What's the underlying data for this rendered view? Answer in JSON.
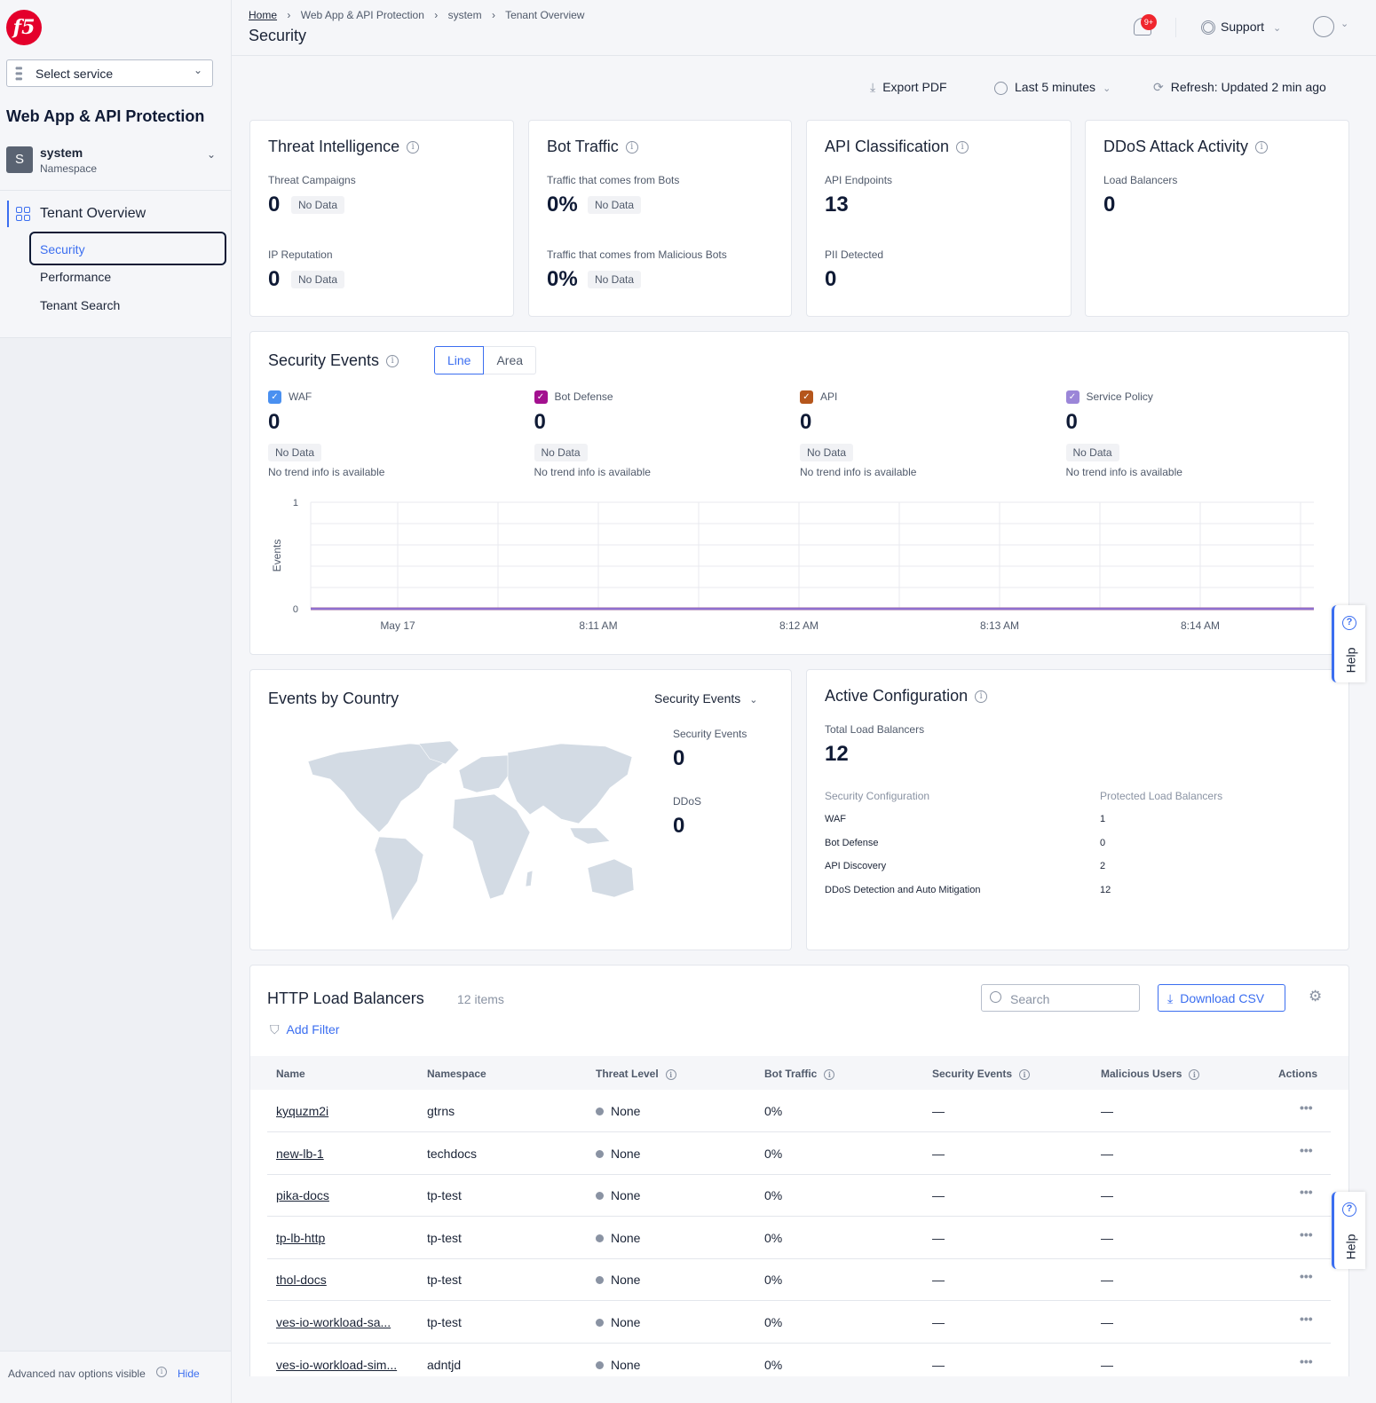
{
  "sidebar": {
    "select_service": "Select service",
    "app_title": "Web App & API Protection",
    "namespace": {
      "avatar": "S",
      "name": "system",
      "label": "Namespace"
    },
    "section": "Tenant Overview",
    "items": [
      {
        "label": "Security",
        "active": true
      },
      {
        "label": "Performance"
      },
      {
        "label": "Tenant Search"
      }
    ],
    "footer": {
      "text": "Advanced nav options visible",
      "hide": "Hide"
    }
  },
  "header": {
    "breadcrumb": [
      "Home",
      "Web App & API Protection",
      "system",
      "Tenant Overview"
    ],
    "title": "Security",
    "notifications_badge": "9+",
    "support": "Support"
  },
  "toolbar": {
    "export": "Export PDF",
    "time_range": "Last 5 minutes",
    "refresh": "Refresh: Updated 2 min ago"
  },
  "cards": {
    "threat": {
      "title": "Threat Intelligence",
      "m1_label": "Threat Campaigns",
      "m1_value": "0",
      "m1_badge": "No Data",
      "m2_label": "IP Reputation",
      "m2_value": "0",
      "m2_badge": "No Data"
    },
    "bot": {
      "title": "Bot Traffic",
      "m1_label": "Traffic that comes from Bots",
      "m1_value": "0%",
      "m1_badge": "No Data",
      "m2_label": "Traffic that comes from Malicious Bots",
      "m2_value": "0%",
      "m2_badge": "No Data"
    },
    "api": {
      "title": "API Classification",
      "m1_label": "API Endpoints",
      "m1_value": "13",
      "m2_label": "PII Detected",
      "m2_value": "0"
    },
    "ddos": {
      "title": "DDoS Attack Activity",
      "m1_label": "Load Balancers",
      "m1_value": "0"
    }
  },
  "security_events": {
    "title": "Security Events",
    "tabs": [
      "Line",
      "Area"
    ],
    "active_tab": "Line",
    "series": [
      {
        "name": "WAF",
        "value": "0",
        "badge": "No Data",
        "trend": "No trend info is available",
        "color": "#4a90f0"
      },
      {
        "name": "Bot Defense",
        "value": "0",
        "badge": "No Data",
        "trend": "No trend info is available",
        "color": "#a3108f"
      },
      {
        "name": "API",
        "value": "0",
        "badge": "No Data",
        "trend": "No trend info is available",
        "color": "#b5561c"
      },
      {
        "name": "Service Policy",
        "value": "0",
        "badge": "No Data",
        "trend": "No trend info is available",
        "color": "#9b86d8"
      }
    ]
  },
  "chart_data": {
    "type": "line",
    "ylabel": "Events",
    "ylim": [
      0,
      1
    ],
    "yticks": [
      "0",
      "1"
    ],
    "xticks": [
      "May 17",
      "8:11 AM",
      "8:12 AM",
      "8:13 AM",
      "8:14 AM"
    ],
    "grid": true,
    "series": [
      {
        "name": "WAF",
        "values": [
          0,
          0,
          0,
          0,
          0
        ]
      },
      {
        "name": "Bot Defense",
        "values": [
          0,
          0,
          0,
          0,
          0
        ]
      },
      {
        "name": "API",
        "values": [
          0,
          0,
          0,
          0,
          0
        ]
      },
      {
        "name": "Service Policy",
        "values": [
          0,
          0,
          0,
          0,
          0
        ]
      }
    ],
    "line_color": "#8e6fd0"
  },
  "events_by_country": {
    "title": "Events by Country",
    "dropdown": "Security Events",
    "m1_label": "Security Events",
    "m1_value": "0",
    "m2_label": "DDoS",
    "m2_value": "0"
  },
  "active_config": {
    "title": "Active Configuration",
    "total_label": "Total Load Balancers",
    "total_value": "12",
    "col1": "Security Configuration",
    "col2": "Protected Load Balancers",
    "rows": [
      [
        "WAF",
        "1"
      ],
      [
        "Bot Defense",
        "0"
      ],
      [
        "API Discovery",
        "2"
      ],
      [
        "DDoS Detection and Auto Mitigation",
        "12"
      ]
    ]
  },
  "lb_table": {
    "title": "HTTP Load Balancers",
    "count": "12 items",
    "search_placeholder": "Search",
    "download": "Download CSV",
    "add_filter": "Add Filter",
    "columns": [
      "Name",
      "Namespace",
      "Threat Level",
      "Bot Traffic",
      "Security Events",
      "Malicious Users",
      "Actions"
    ],
    "rows": [
      [
        "kyquzm2i",
        "gtrns",
        "None",
        "0%",
        "—",
        "—"
      ],
      [
        "new-lb-1",
        "techdocs",
        "None",
        "0%",
        "—",
        "—"
      ],
      [
        "pika-docs",
        "tp-test",
        "None",
        "0%",
        "—",
        "—"
      ],
      [
        "tp-lb-http",
        "tp-test",
        "None",
        "0%",
        "—",
        "—"
      ],
      [
        "thol-docs",
        "tp-test",
        "None",
        "0%",
        "—",
        "—"
      ],
      [
        "ves-io-workload-sa...",
        "tp-test",
        "None",
        "0%",
        "—",
        "—"
      ],
      [
        "ves-io-workload-sim...",
        "adntjd",
        "None",
        "0%",
        "—",
        "—"
      ]
    ]
  },
  "help": "Help"
}
